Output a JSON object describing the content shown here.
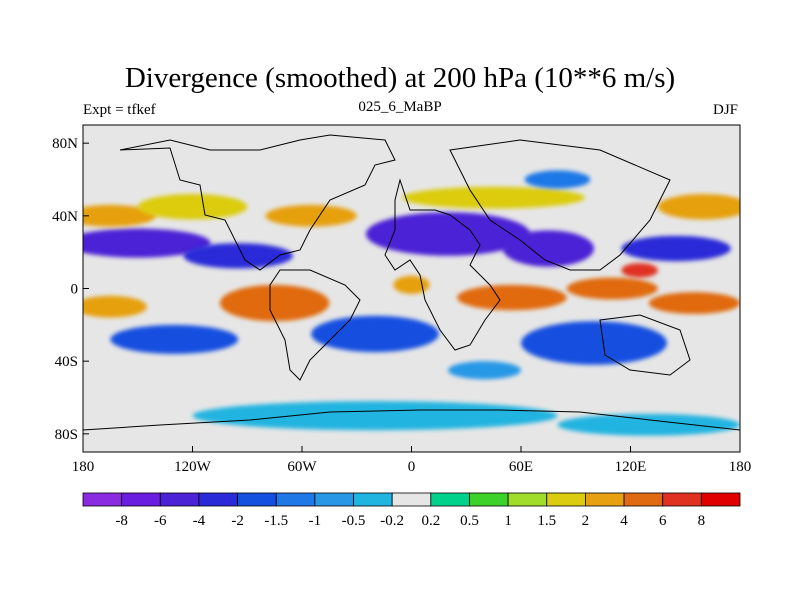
{
  "title": "Divergence (smoothed) at 200 hPa (10**6 m/s)",
  "subtitle_left": "Expt = tfkef",
  "subtitle_center": "025_6_MaBP",
  "subtitle_right": "DJF",
  "chart_data": {
    "type": "heatmap",
    "title": "Divergence (smoothed) at 200 hPa (10**6 m/s)",
    "projection": "equirectangular",
    "x_range": [
      -180,
      180
    ],
    "y_range": [
      -90,
      90
    ],
    "x_ticks": [
      {
        "value": -180,
        "label": "180"
      },
      {
        "value": -120,
        "label": "120W"
      },
      {
        "value": -60,
        "label": "60W"
      },
      {
        "value": 0,
        "label": "0"
      },
      {
        "value": 60,
        "label": "60E"
      },
      {
        "value": 120,
        "label": "120E"
      },
      {
        "value": 180,
        "label": "180"
      }
    ],
    "y_ticks": [
      {
        "value": 80,
        "label": "80N"
      },
      {
        "value": 40,
        "label": "40N"
      },
      {
        "value": 0,
        "label": "0"
      },
      {
        "value": -40,
        "label": "40S"
      },
      {
        "value": -80,
        "label": "80S"
      }
    ],
    "colorbar": {
      "labels": [
        "-8",
        "-6",
        "-4",
        "-2",
        "-1.5",
        "-1",
        "-0.5",
        "-0.2",
        "0.2",
        "0.5",
        "1",
        "1.5",
        "2",
        "4",
        "6",
        "8"
      ],
      "colors": [
        "#8a2be2",
        "#6a1fe0",
        "#4b22d6",
        "#2a2ad8",
        "#1450e0",
        "#1e78e6",
        "#2898e6",
        "#20b4e0",
        "#e6e6e6",
        "#00d28c",
        "#3cd22a",
        "#a0dc2a",
        "#dccc10",
        "#e6a010",
        "#e06a10",
        "#e03020",
        "#e00000"
      ]
    },
    "regions": [
      {
        "lon": -150,
        "lat": 25,
        "rx": 40,
        "ry": 8,
        "value": -5
      },
      {
        "lon": -95,
        "lat": 18,
        "rx": 30,
        "ry": 7,
        "value": -4
      },
      {
        "lon": 20,
        "lat": 30,
        "rx": 45,
        "ry": 12,
        "value": -6
      },
      {
        "lon": 75,
        "lat": 22,
        "rx": 25,
        "ry": 10,
        "value": -5
      },
      {
        "lon": 145,
        "lat": 22,
        "rx": 30,
        "ry": 7,
        "value": -3
      },
      {
        "lon": -165,
        "lat": 40,
        "rx": 25,
        "ry": 6,
        "value": 2
      },
      {
        "lon": -120,
        "lat": 45,
        "rx": 30,
        "ry": 7,
        "value": 1.5
      },
      {
        "lon": -55,
        "lat": 40,
        "rx": 25,
        "ry": 6,
        "value": 2
      },
      {
        "lon": 45,
        "lat": 50,
        "rx": 50,
        "ry": 6,
        "value": 1.5
      },
      {
        "lon": 160,
        "lat": 45,
        "rx": 25,
        "ry": 7,
        "value": 2
      },
      {
        "lon": -75,
        "lat": -8,
        "rx": 30,
        "ry": 10,
        "value": 4
      },
      {
        "lon": 0,
        "lat": 2,
        "rx": 10,
        "ry": 5,
        "value": 2
      },
      {
        "lon": 55,
        "lat": -5,
        "rx": 30,
        "ry": 7,
        "value": 4
      },
      {
        "lon": 110,
        "lat": 0,
        "rx": 25,
        "ry": 6,
        "value": 4
      },
      {
        "lon": 125,
        "lat": 10,
        "rx": 10,
        "ry": 4,
        "value": 6
      },
      {
        "lon": 155,
        "lat": -8,
        "rx": 25,
        "ry": 6,
        "value": 4
      },
      {
        "lon": -165,
        "lat": -10,
        "rx": 20,
        "ry": 6,
        "value": 2
      },
      {
        "lon": -130,
        "lat": -28,
        "rx": 35,
        "ry": 8,
        "value": -2
      },
      {
        "lon": -20,
        "lat": -25,
        "rx": 35,
        "ry": 10,
        "value": -2
      },
      {
        "lon": 100,
        "lat": -30,
        "rx": 40,
        "ry": 12,
        "value": -2
      },
      {
        "lon": 40,
        "lat": -45,
        "rx": 20,
        "ry": 5,
        "value": -1
      },
      {
        "lon": 80,
        "lat": 60,
        "rx": 18,
        "ry": 5,
        "value": -1.5
      },
      {
        "lon": -20,
        "lat": -70,
        "rx": 100,
        "ry": 8,
        "value": -0.5
      },
      {
        "lon": 130,
        "lat": -75,
        "rx": 50,
        "ry": 6,
        "value": -0.5
      }
    ]
  }
}
